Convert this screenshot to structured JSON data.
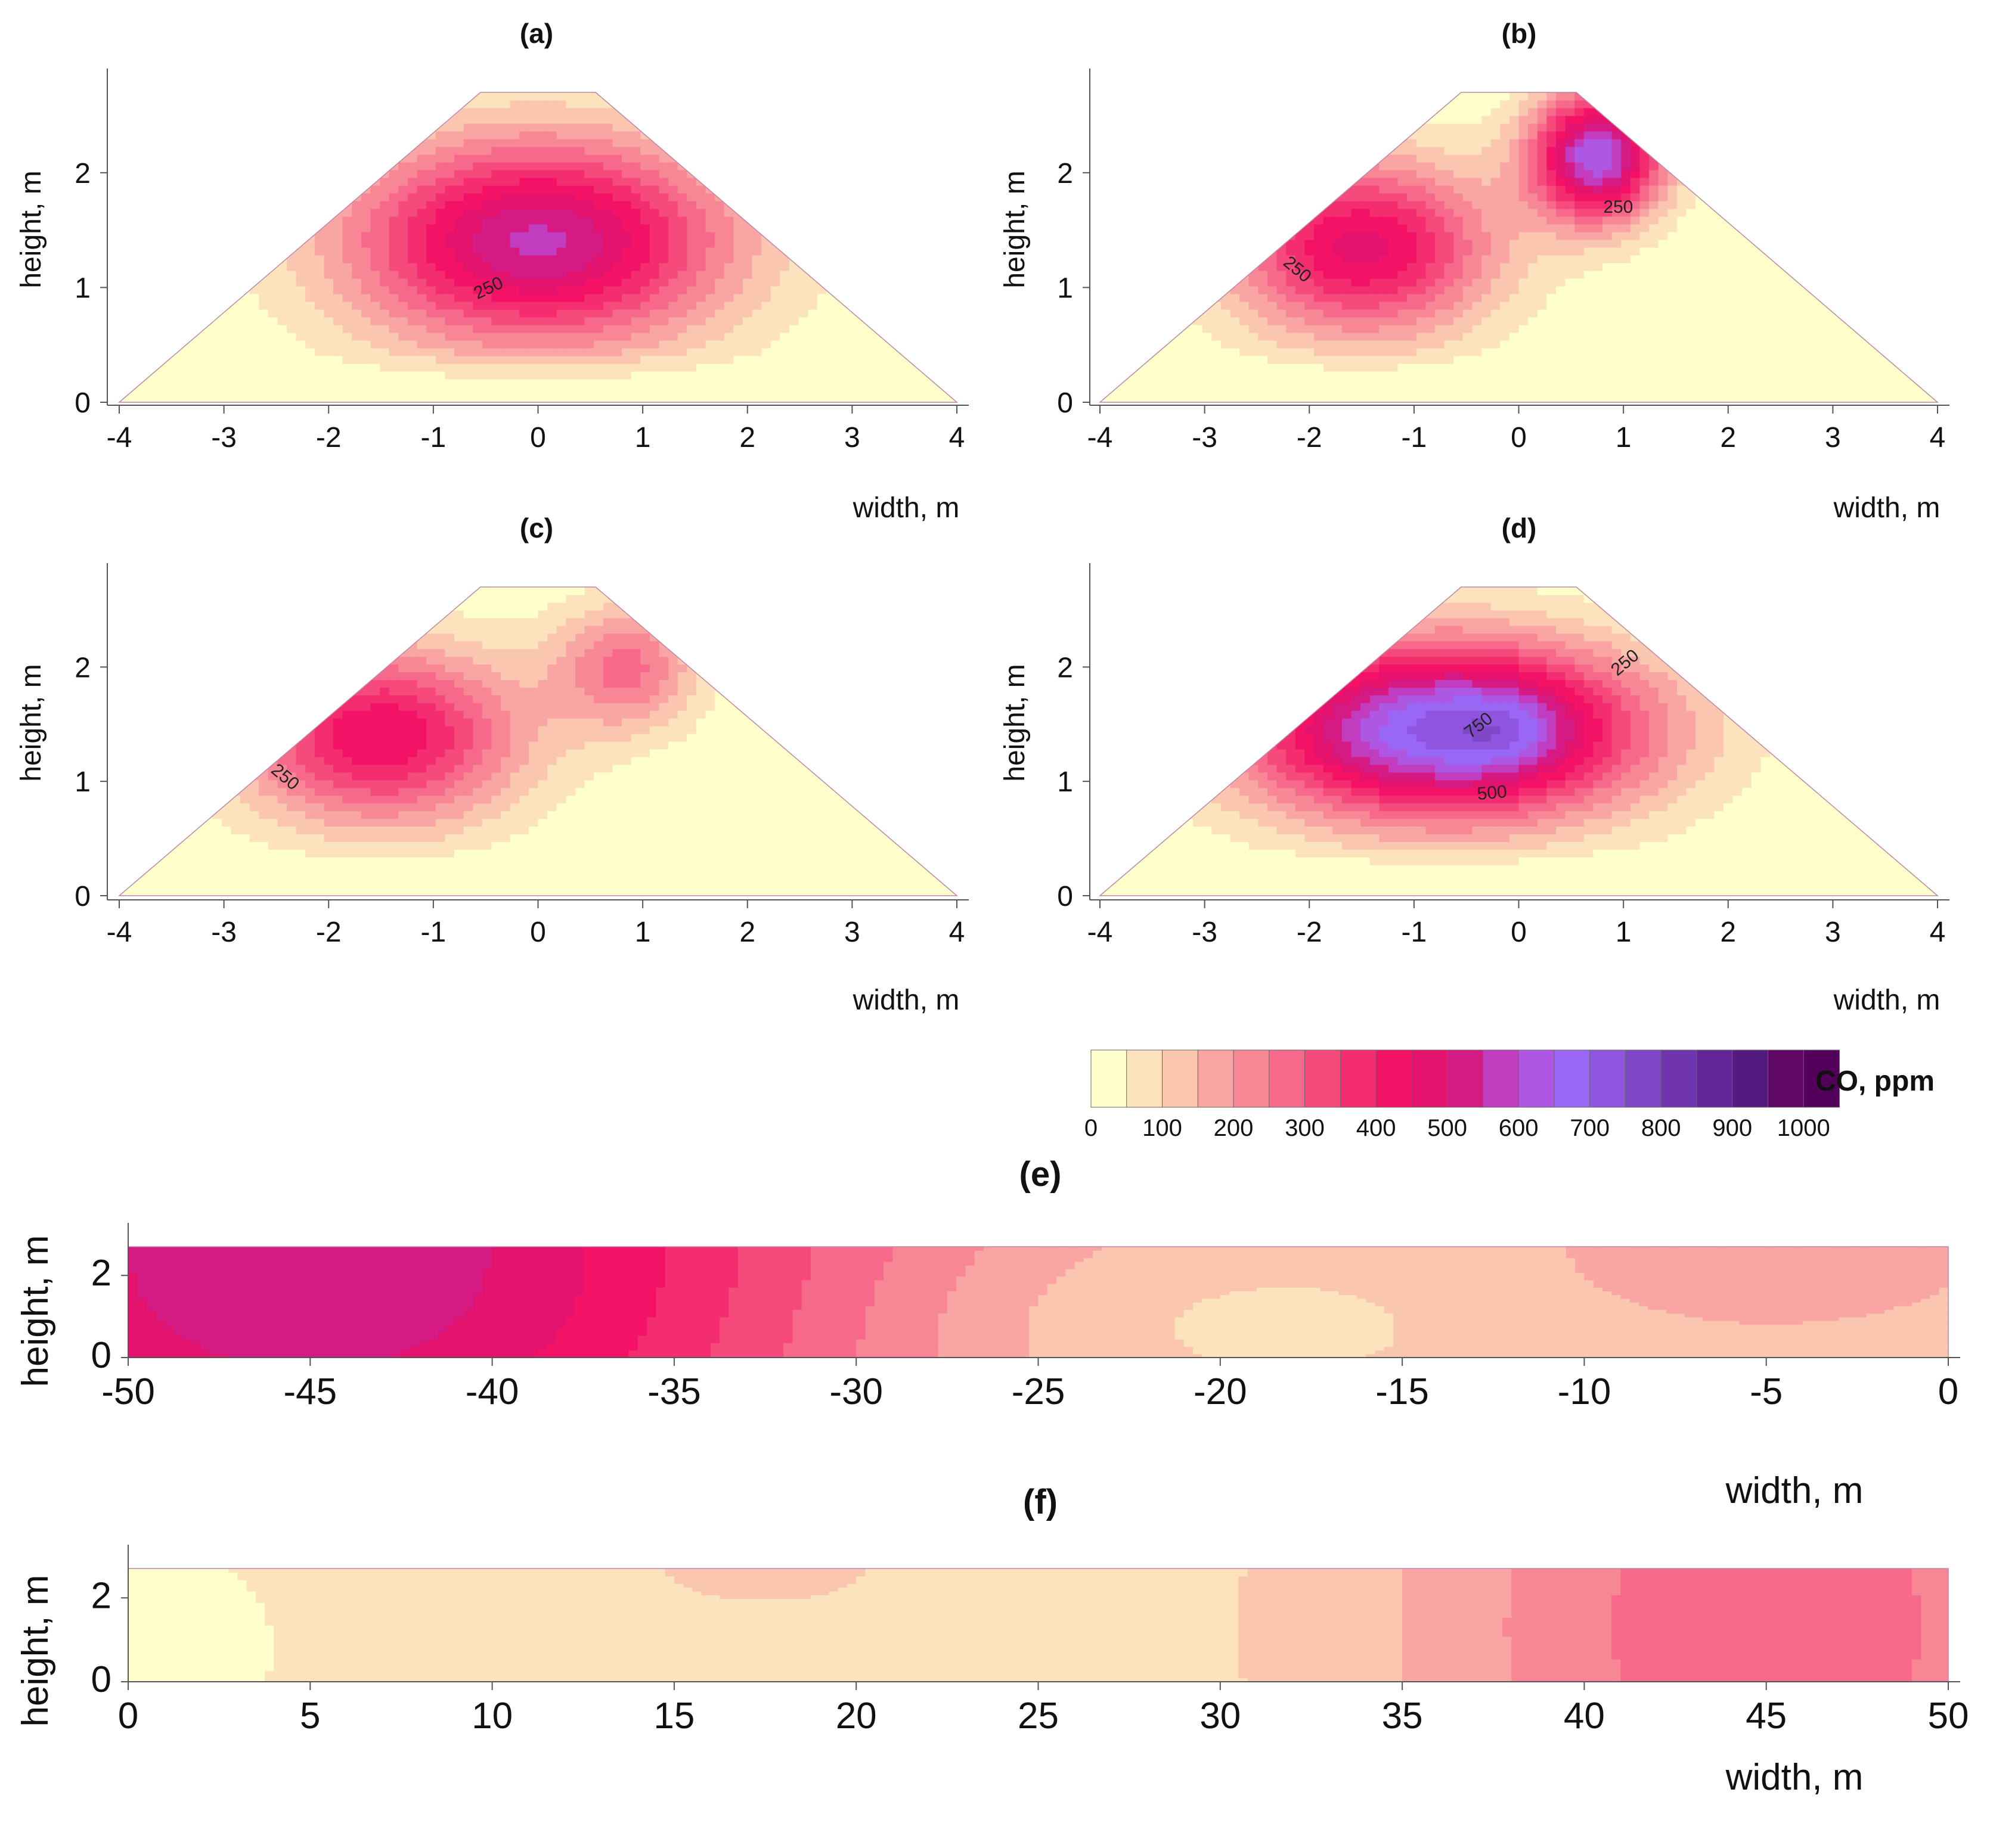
{
  "chart_data": {
    "type": "heatmap",
    "colorbar": {
      "title": "CO, ppm",
      "tick_labels": [
        "0",
        "100",
        "200",
        "300",
        "400",
        "500",
        "600",
        "700",
        "800",
        "900",
        "1000"
      ],
      "range": [
        0,
        1050
      ],
      "step": 50,
      "colors": [
        "#FFFFCC",
        "#FDE3BD",
        "#FBC6B0",
        "#F9A5A4",
        "#F88796",
        "#F7698A",
        "#F6497C",
        "#F42C70",
        "#F31266",
        "#E3136E",
        "#D51A83",
        "#C23CC0",
        "#AD57E3",
        "#9A66F5",
        "#8F55E0",
        "#8047C8",
        "#7034AE",
        "#612597",
        "#531A80",
        "#5E0764",
        "#53005A"
      ]
    },
    "panels": [
      {
        "id": "a",
        "title": "(a)",
        "shape": "trapezoid",
        "xlabel": "width, m",
        "ylabel": "height, m",
        "xlim": [
          -4,
          4
        ],
        "ylim": [
          0,
          2.7
        ],
        "xticks": [
          "-4",
          "-3",
          "-2",
          "-1",
          "0",
          "1",
          "2",
          "3",
          "4"
        ],
        "yticks": [
          "0",
          "1",
          "2"
        ],
        "peaks": [
          {
            "x": 0.0,
            "y": 1.4,
            "ppm": 560,
            "sx": 1.3,
            "sy": 0.65
          }
        ],
        "contour_labels": [
          {
            "x": -0.45,
            "y": 0.95,
            "text": "250",
            "angle": 25
          }
        ]
      },
      {
        "id": "b",
        "title": "(b)",
        "shape": "trapezoid",
        "xlabel": "width, m",
        "ylabel": "height, m",
        "xlim": [
          -4,
          4
        ],
        "ylim": [
          0,
          2.7
        ],
        "xticks": [
          "-4",
          "-3",
          "-2",
          "-1",
          "0",
          "1",
          "2",
          "3",
          "4"
        ],
        "yticks": [
          "0",
          "1",
          "2"
        ],
        "peaks": [
          {
            "x": -1.5,
            "y": 1.35,
            "ppm": 470,
            "sx": 0.9,
            "sy": 0.55
          },
          {
            "x": 0.75,
            "y": 2.15,
            "ppm": 640,
            "sx": 0.45,
            "sy": 0.4
          }
        ],
        "contour_labels": [
          {
            "x": -2.15,
            "y": 1.12,
            "text": "250",
            "angle": -40
          },
          {
            "x": 0.95,
            "y": 1.65,
            "text": "250",
            "angle": 0
          }
        ]
      },
      {
        "id": "c",
        "title": "(c)",
        "shape": "trapezoid",
        "xlabel": "width, m",
        "ylabel": "height, m",
        "xlim": [
          -4,
          4
        ],
        "ylim": [
          0,
          2.7
        ],
        "xticks": [
          "-4",
          "-3",
          "-2",
          "-1",
          "0",
          "1",
          "2",
          "3",
          "4"
        ],
        "yticks": [
          "0",
          "1",
          "2"
        ],
        "peaks": [
          {
            "x": -1.5,
            "y": 1.4,
            "ppm": 450,
            "sx": 0.95,
            "sy": 0.55
          },
          {
            "x": 0.85,
            "y": 2.0,
            "ppm": 260,
            "sx": 0.5,
            "sy": 0.4
          }
        ],
        "contour_labels": [
          {
            "x": -2.45,
            "y": 1.0,
            "text": "250",
            "angle": -40
          }
        ]
      },
      {
        "id": "d",
        "title": "(d)",
        "shape": "trapezoid",
        "xlabel": "width, m",
        "ylabel": "height, m",
        "xlim": [
          -4,
          4
        ],
        "ylim": [
          0,
          2.7
        ],
        "xticks": [
          "-4",
          "-3",
          "-2",
          "-1",
          "0",
          "1",
          "2",
          "3",
          "4"
        ],
        "yticks": [
          "0",
          "1",
          "2"
        ],
        "peaks": [
          {
            "x": -0.7,
            "y": 1.45,
            "ppm": 720,
            "sx": 1.35,
            "sy": 0.55
          },
          {
            "x": -0.1,
            "y": 1.45,
            "ppm": 80,
            "sx": 0.35,
            "sy": 0.25
          }
        ],
        "contour_labels": [
          {
            "x": 1.05,
            "y": 2.0,
            "text": "250",
            "angle": 40
          },
          {
            "x": -0.35,
            "y": 1.45,
            "text": "750",
            "angle": 38
          },
          {
            "x": -0.25,
            "y": 0.85,
            "text": "500",
            "angle": 5
          }
        ]
      },
      {
        "id": "e",
        "title": "(e)",
        "shape": "rectangle",
        "xlabel": "width, m",
        "ylabel": "height, m",
        "xlim": [
          -50,
          0
        ],
        "ylim": [
          0,
          2.7
        ],
        "xticks": [
          "-50",
          "-45",
          "-40",
          "-35",
          "-30",
          "-25",
          "-20",
          "-15",
          "-10",
          "-5",
          "0"
        ],
        "yticks": [
          "0",
          "2"
        ],
        "peaks": [
          {
            "x": -45,
            "y": 2.4,
            "ppm": 420,
            "sx": 11,
            "sy": 6
          },
          {
            "x": -5,
            "y": 2.5,
            "ppm": 80,
            "sx": 4,
            "sy": 1.2
          }
        ],
        "base_ppm": 120,
        "low_regions": [
          {
            "x": -22,
            "y": 0.8,
            "ppm": -60,
            "sx": 6,
            "sy": 1.6
          }
        ],
        "contour_labels": []
      },
      {
        "id": "f",
        "title": "(f)",
        "shape": "rectangle",
        "xlabel": "width, m",
        "ylabel": "height, m",
        "xlim": [
          0,
          50
        ],
        "ylim": [
          0,
          2.7
        ],
        "xticks": [
          "0",
          "5",
          "10",
          "15",
          "20",
          "25",
          "30",
          "35",
          "40",
          "45",
          "50"
        ],
        "yticks": [
          "0",
          "2"
        ],
        "peaks": [
          {
            "x": 45,
            "y": 1.3,
            "ppm": 210,
            "sx": 7,
            "sy": 6
          },
          {
            "x": 17.5,
            "y": 2.7,
            "ppm": 45,
            "sx": 2.5,
            "sy": 0.7
          }
        ],
        "base_ppm": 75,
        "low_regions": [
          {
            "x": 0,
            "y": 0.8,
            "ppm": -60,
            "sx": 3,
            "sy": 2
          }
        ],
        "contour_labels": []
      }
    ]
  }
}
